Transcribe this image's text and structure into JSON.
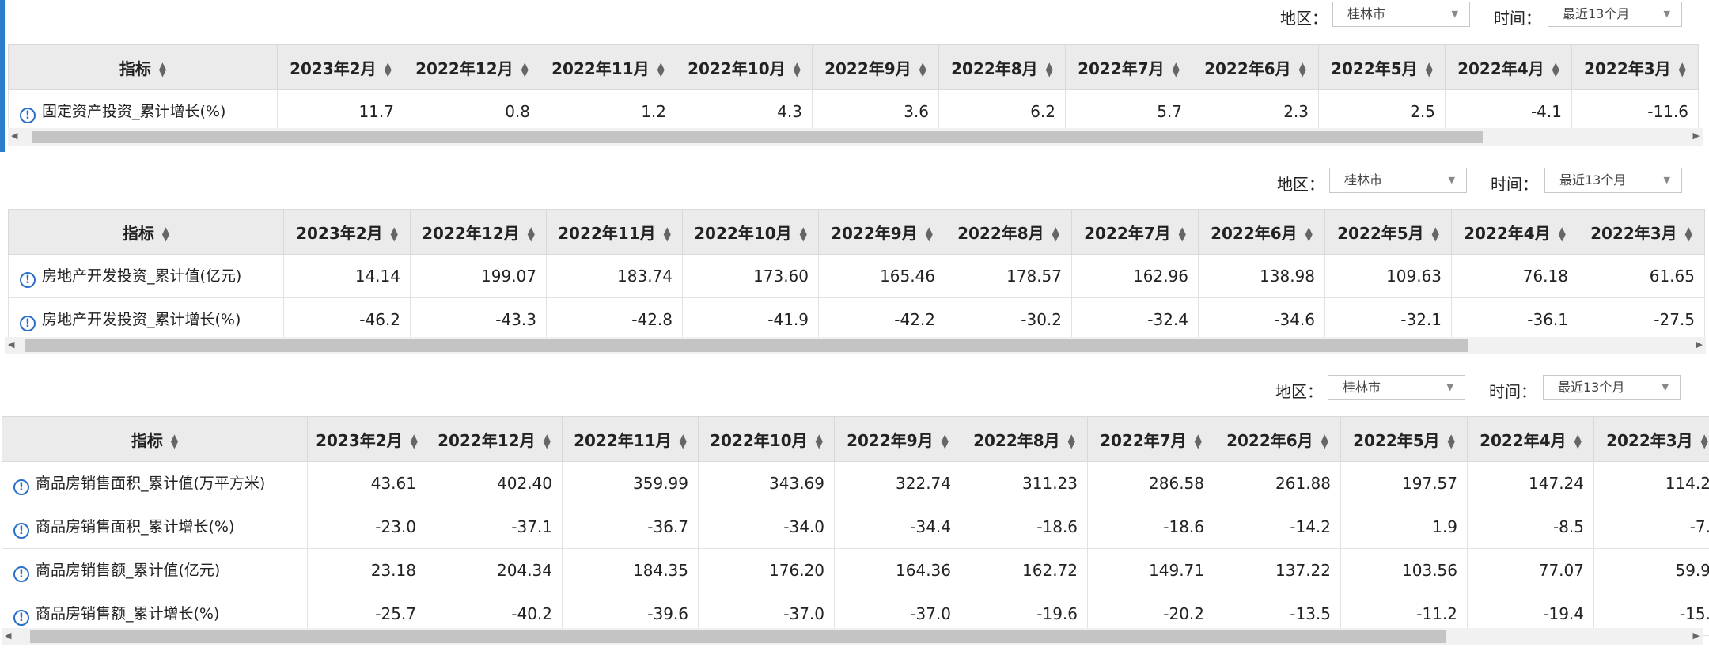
{
  "filters": {
    "region_label": "地区：",
    "region_value": "桂林市",
    "time_label": "时间：",
    "time_value": "最近13个月"
  },
  "header": {
    "indicator": "指标",
    "months": [
      "2023年2月",
      "2022年12月",
      "2022年11月",
      "2022年10月",
      "2022年9月",
      "2022年8月",
      "2022年7月",
      "2022年6月",
      "2022年5月",
      "2022年4月",
      "2022年3月"
    ]
  },
  "tables": [
    {
      "rows": [
        {
          "name": "固定资产投资_累计增长(%)",
          "values": [
            "11.7",
            "0.8",
            "1.2",
            "4.3",
            "3.6",
            "6.2",
            "5.7",
            "2.3",
            "2.5",
            "-4.1",
            "-11.6"
          ]
        }
      ]
    },
    {
      "rows": [
        {
          "name": "房地产开发投资_累计值(亿元)",
          "values": [
            "14.14",
            "199.07",
            "183.74",
            "173.60",
            "165.46",
            "178.57",
            "162.96",
            "138.98",
            "109.63",
            "76.18",
            "61.65"
          ]
        },
        {
          "name": "房地产开发投资_累计增长(%)",
          "values": [
            "-46.2",
            "-43.3",
            "-42.8",
            "-41.9",
            "-42.2",
            "-30.2",
            "-32.4",
            "-34.6",
            "-32.1",
            "-36.1",
            "-27.5"
          ]
        }
      ]
    },
    {
      "rows": [
        {
          "name": "商品房销售面积_累计值(万平方米)",
          "values": [
            "43.61",
            "402.40",
            "359.99",
            "343.69",
            "322.74",
            "311.23",
            "286.58",
            "261.88",
            "197.57",
            "147.24",
            "114.2"
          ]
        },
        {
          "name": "商品房销售面积_累计增长(%)",
          "values": [
            "-23.0",
            "-37.1",
            "-36.7",
            "-34.0",
            "-34.4",
            "-18.6",
            "-18.6",
            "-14.2",
            "1.9",
            "-8.5",
            "-7."
          ]
        },
        {
          "name": "商品房销售额_累计值(亿元)",
          "values": [
            "23.18",
            "204.34",
            "184.35",
            "176.20",
            "164.36",
            "162.72",
            "149.71",
            "137.22",
            "103.56",
            "77.07",
            "59.9"
          ]
        },
        {
          "name": "商品房销售额_累计增长(%)",
          "values": [
            "-25.7",
            "-40.2",
            "-39.6",
            "-37.0",
            "-37.0",
            "-19.6",
            "-20.2",
            "-13.5",
            "-11.2",
            "-19.4",
            "-15."
          ]
        }
      ]
    }
  ]
}
